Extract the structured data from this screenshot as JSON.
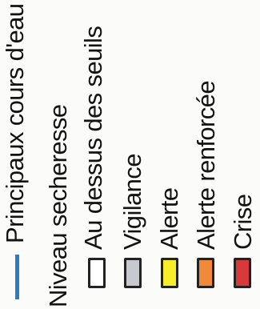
{
  "legend": {
    "rivers_label": "Principaux cours d'eau",
    "dryness_heading": "Niveau secheresse",
    "levels": [
      {
        "label": "Au dessus des seuils",
        "color": "#ffffff"
      },
      {
        "label": "Vigilance",
        "color": "#c6c9ce"
      },
      {
        "label": "Alerte",
        "color": "#f6ee2a"
      },
      {
        "label": "Alerte renforcée",
        "color": "#f08a3a"
      },
      {
        "label": "Crise",
        "color": "#d8393b"
      }
    ],
    "river_color": "#2f79c6"
  }
}
